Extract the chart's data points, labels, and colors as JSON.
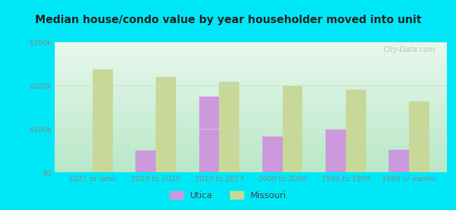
{
  "title": "Median house/condo value by year householder moved into unit",
  "categories": [
    "2021 or later",
    "2018 to 2020",
    "2010 to 2017",
    "2000 to 2009",
    "1990 to 1999",
    "1989 or earlier"
  ],
  "utica_values": [
    null,
    50000,
    175000,
    82000,
    98000,
    52000
  ],
  "missouri_values": [
    237000,
    220000,
    208000,
    198000,
    190000,
    163000
  ],
  "utica_color": "#cc99dd",
  "missouri_color": "#c8d898",
  "background_outer": "#00e8f8",
  "bg_top": "#e8f8ee",
  "bg_bottom": "#b8e8c8",
  "ylim": [
    0,
    300000
  ],
  "yticks": [
    0,
    100000,
    200000,
    300000
  ],
  "ytick_labels": [
    "$0",
    "$100k",
    "$200k",
    "$300k"
  ],
  "bar_width": 0.32,
  "legend_labels": [
    "Utica",
    "Missouri"
  ],
  "watermark": "City-Data.com",
  "grid_color": "#ddeecc",
  "tick_color": "#888888",
  "title_color": "#222222"
}
